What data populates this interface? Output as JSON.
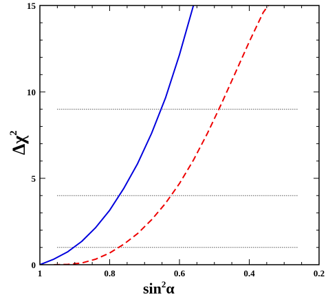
{
  "chart_data": {
    "type": "line",
    "xlabel": "sin",
    "xlabel_superscript": "2",
    "xlabel_symbol": "α",
    "ylabel": "Δχ",
    "ylabel_superscript": "2",
    "xlim": [
      1.0,
      0.2
    ],
    "ylim": [
      0,
      15
    ],
    "x_reversed": true,
    "x_ticks": [
      "1",
      "0.8",
      "0.6",
      "0.4",
      "0.2"
    ],
    "x_tick_values": [
      1.0,
      0.8,
      0.6,
      0.4,
      0.2
    ],
    "y_ticks": [
      "0",
      "5",
      "10",
      "15"
    ],
    "y_tick_values": [
      0,
      5,
      10,
      15
    ],
    "legend": "none",
    "grid": false,
    "reference_lines": [
      {
        "y": 1,
        "x_range": [
          0.95,
          0.26
        ],
        "style": "dotted"
      },
      {
        "y": 4,
        "x_range": [
          0.95,
          0.26
        ],
        "style": "dotted"
      },
      {
        "y": 9,
        "x_range": [
          0.95,
          0.26
        ],
        "style": "dotted"
      }
    ],
    "series": [
      {
        "style": "solid",
        "color": "#0000dd",
        "x": [
          1.0,
          0.96,
          0.92,
          0.88,
          0.84,
          0.8,
          0.76,
          0.72,
          0.68,
          0.64,
          0.6,
          0.56
        ],
        "y": [
          0.0,
          0.32,
          0.75,
          1.35,
          2.15,
          3.15,
          4.4,
          5.85,
          7.6,
          9.65,
          12.15,
          15.0
        ]
      },
      {
        "style": "dashed",
        "color": "#ee0000",
        "x": [
          0.96,
          0.92,
          0.88,
          0.84,
          0.8,
          0.76,
          0.72,
          0.68,
          0.64,
          0.6,
          0.56,
          0.52,
          0.48,
          0.44,
          0.4,
          0.36,
          0.32,
          0.28,
          0.26
        ],
        "y": [
          0.0,
          0.02,
          0.1,
          0.32,
          0.68,
          1.18,
          1.8,
          2.6,
          3.55,
          4.7,
          6.05,
          7.6,
          9.3,
          11.1,
          12.9,
          14.6,
          15.7,
          15.9,
          16.0
        ]
      }
    ]
  }
}
